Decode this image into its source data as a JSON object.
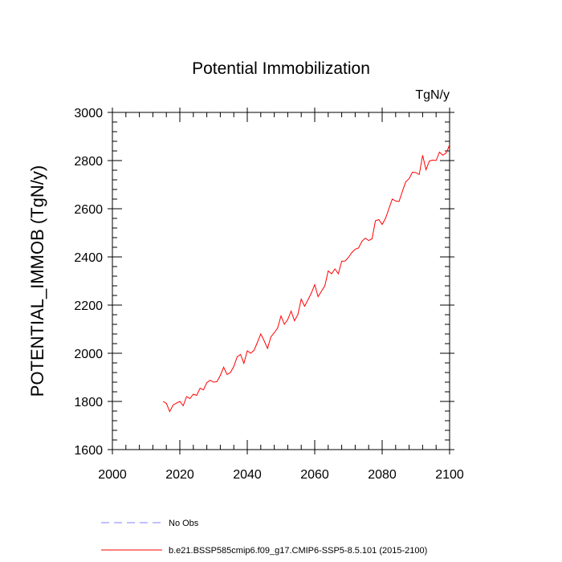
{
  "chart_data": {
    "type": "line",
    "title": "Potential Immobilization",
    "units": "TgN/y",
    "ylabel": "POTENTIAL_IMMOB  (TgN/y)",
    "xlabel": "",
    "xlim": [
      2000,
      2100
    ],
    "ylim": [
      1600,
      3000
    ],
    "xticks": [
      2000,
      2020,
      2040,
      2060,
      2080,
      2100
    ],
    "yticks": [
      1600,
      1800,
      2000,
      2200,
      2400,
      2600,
      2800,
      3000
    ],
    "grid": false,
    "legend_position": "bottom-left",
    "series": [
      {
        "name": "No Obs",
        "color": "#7f7fff",
        "style": "dashed",
        "x": [],
        "y": []
      },
      {
        "name": "b.e21.BSSP585cmip6.f09_g17.CMIP6-SSP5-8.5.101 (2015-2100)",
        "color": "#ff0000",
        "style": "solid",
        "x": [
          2015,
          2016,
          2017,
          2018,
          2019,
          2020,
          2021,
          2022,
          2023,
          2024,
          2025,
          2026,
          2027,
          2028,
          2029,
          2030,
          2031,
          2032,
          2033,
          2034,
          2035,
          2036,
          2037,
          2038,
          2039,
          2040,
          2041,
          2042,
          2043,
          2044,
          2045,
          2046,
          2047,
          2048,
          2049,
          2050,
          2051,
          2052,
          2053,
          2054,
          2055,
          2056,
          2057,
          2058,
          2059,
          2060,
          2061,
          2062,
          2063,
          2064,
          2065,
          2066,
          2067,
          2068,
          2069,
          2070,
          2071,
          2072,
          2073,
          2074,
          2075,
          2076,
          2077,
          2078,
          2079,
          2080,
          2081,
          2082,
          2083,
          2084,
          2085,
          2086,
          2087,
          2088,
          2089,
          2090,
          2091,
          2092,
          2093,
          2094,
          2095,
          2096,
          2097,
          2098,
          2099,
          2100
        ],
        "y": [
          1800,
          1792,
          1758,
          1785,
          1793,
          1800,
          1782,
          1820,
          1812,
          1830,
          1825,
          1855,
          1848,
          1878,
          1888,
          1880,
          1882,
          1908,
          1942,
          1912,
          1920,
          1945,
          1985,
          1995,
          1958,
          2010,
          2000,
          2012,
          2045,
          2080,
          2052,
          2020,
          2068,
          2085,
          2105,
          2155,
          2120,
          2140,
          2175,
          2135,
          2160,
          2225,
          2195,
          2222,
          2250,
          2285,
          2235,
          2258,
          2280,
          2342,
          2330,
          2350,
          2330,
          2382,
          2383,
          2398,
          2418,
          2432,
          2437,
          2465,
          2478,
          2468,
          2475,
          2550,
          2555,
          2535,
          2560,
          2600,
          2640,
          2632,
          2630,
          2672,
          2712,
          2725,
          2752,
          2750,
          2742,
          2822,
          2762,
          2798,
          2802,
          2800,
          2835,
          2822,
          2832,
          2865
        ]
      }
    ]
  }
}
